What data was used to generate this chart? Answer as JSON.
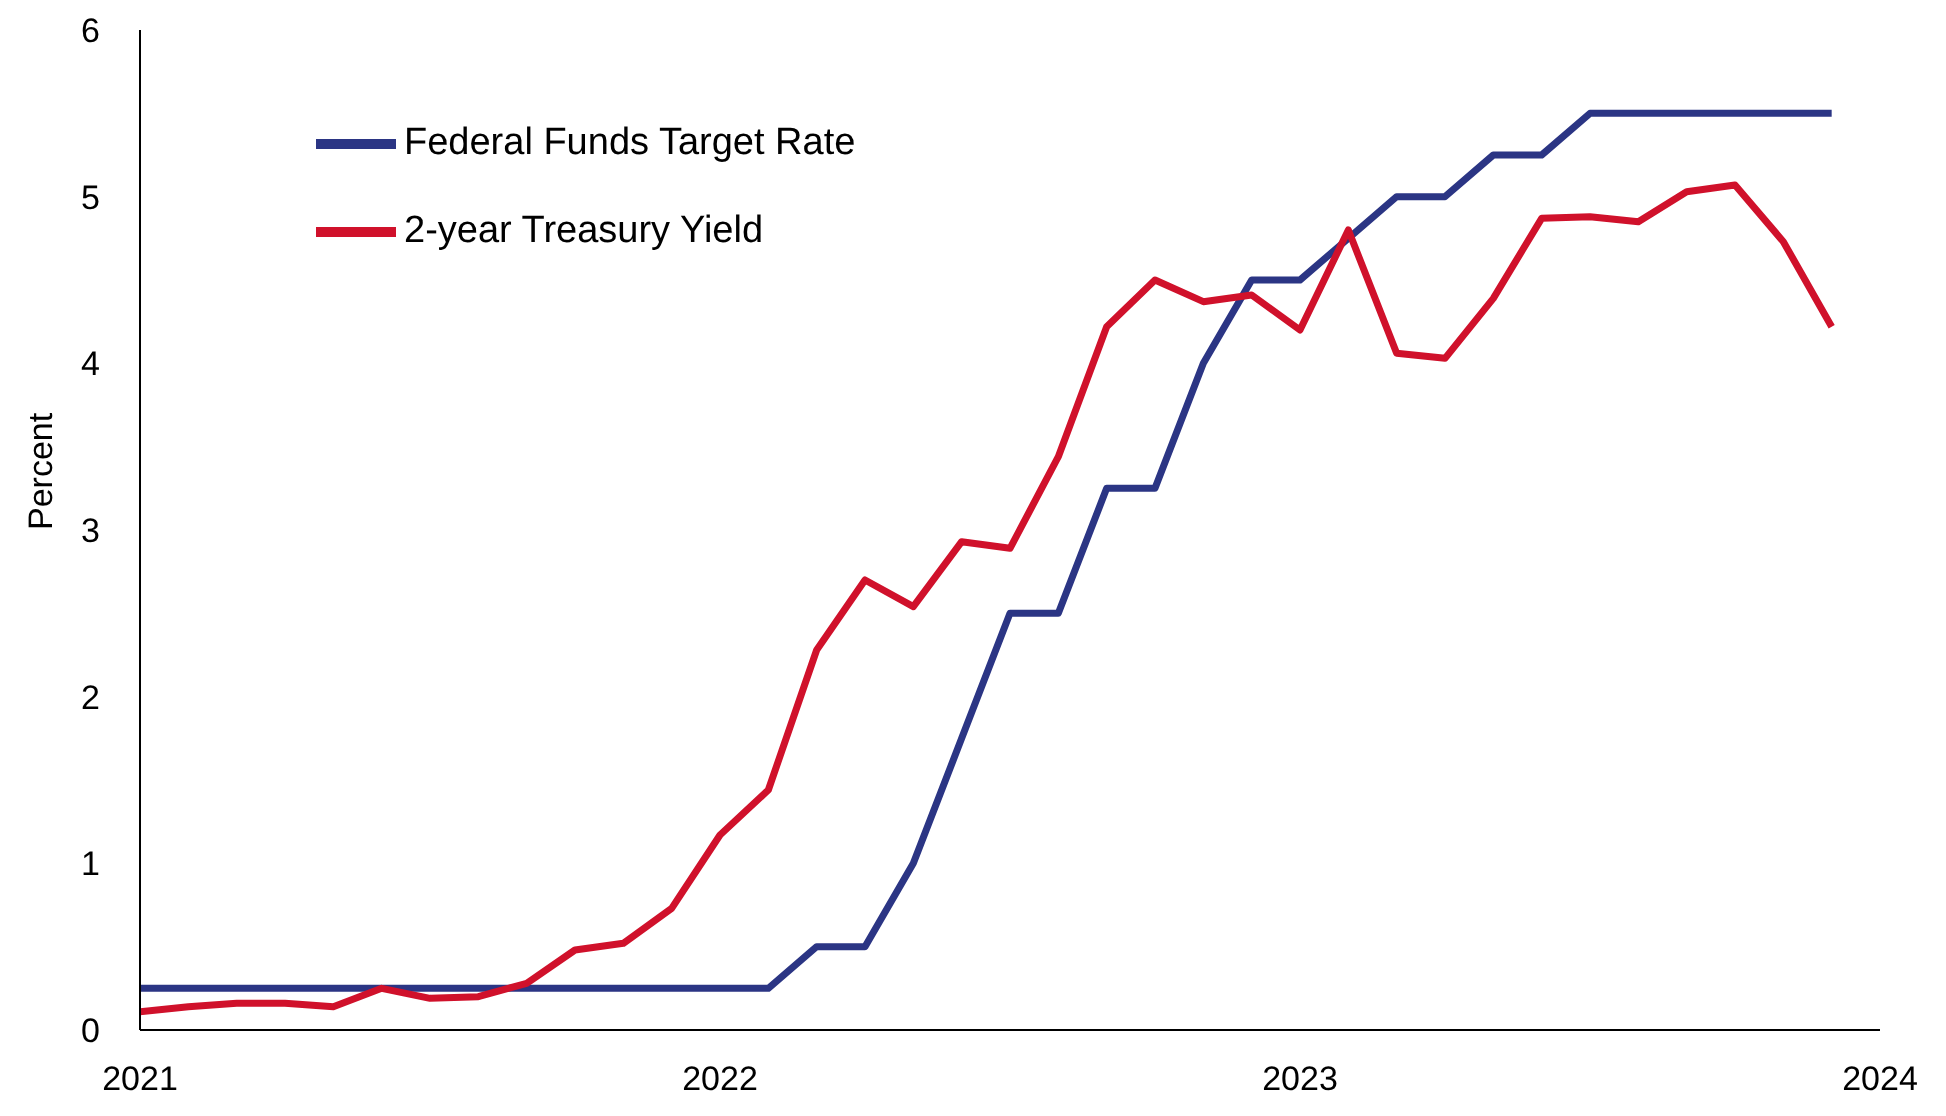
{
  "chart_data": {
    "type": "line",
    "ylabel": "Percent",
    "x": [
      "2021-01",
      "2021-02",
      "2021-03",
      "2021-04",
      "2021-05",
      "2021-06",
      "2021-07",
      "2021-08",
      "2021-09",
      "2021-10",
      "2021-11",
      "2021-12",
      "2022-01",
      "2022-02",
      "2022-03",
      "2022-04",
      "2022-05",
      "2022-06",
      "2022-07",
      "2022-08",
      "2022-09",
      "2022-10",
      "2022-11",
      "2022-12",
      "2023-01",
      "2023-02",
      "2023-03",
      "2023-04",
      "2023-05",
      "2023-06",
      "2023-07",
      "2023-08",
      "2023-09",
      "2023-10",
      "2023-11",
      "2023-12"
    ],
    "series": [
      {
        "name": "Federal Funds Target Rate",
        "color": "#2b3584",
        "values": [
          0.25,
          0.25,
          0.25,
          0.25,
          0.25,
          0.25,
          0.25,
          0.25,
          0.25,
          0.25,
          0.25,
          0.25,
          0.25,
          0.25,
          0.5,
          0.5,
          1.0,
          1.75,
          2.5,
          2.5,
          3.25,
          3.25,
          4.0,
          4.5,
          4.5,
          4.75,
          5.0,
          5.0,
          5.25,
          5.25,
          5.5,
          5.5,
          5.5,
          5.5,
          5.5,
          5.5
        ]
      },
      {
        "name": "2-year Treasury Yield",
        "color": "#d0112b",
        "values": [
          0.11,
          0.14,
          0.16,
          0.16,
          0.14,
          0.25,
          0.19,
          0.2,
          0.28,
          0.48,
          0.52,
          0.73,
          1.17,
          1.44,
          2.28,
          2.7,
          2.54,
          2.93,
          2.89,
          3.44,
          4.22,
          4.5,
          4.37,
          4.41,
          4.2,
          4.8,
          4.06,
          4.03,
          4.39,
          4.87,
          4.88,
          4.85,
          5.03,
          5.07,
          4.73,
          4.22
        ]
      }
    ],
    "xlim": [
      "2021-01",
      "2024-01"
    ],
    "xticks": [
      "2021",
      "2022",
      "2023",
      "2024"
    ],
    "ylim": [
      0,
      6
    ],
    "yticks": [
      0,
      1,
      2,
      3,
      4,
      5,
      6
    ],
    "grid": false,
    "legend": "top left",
    "marker": "none",
    "line_style": "solid"
  }
}
